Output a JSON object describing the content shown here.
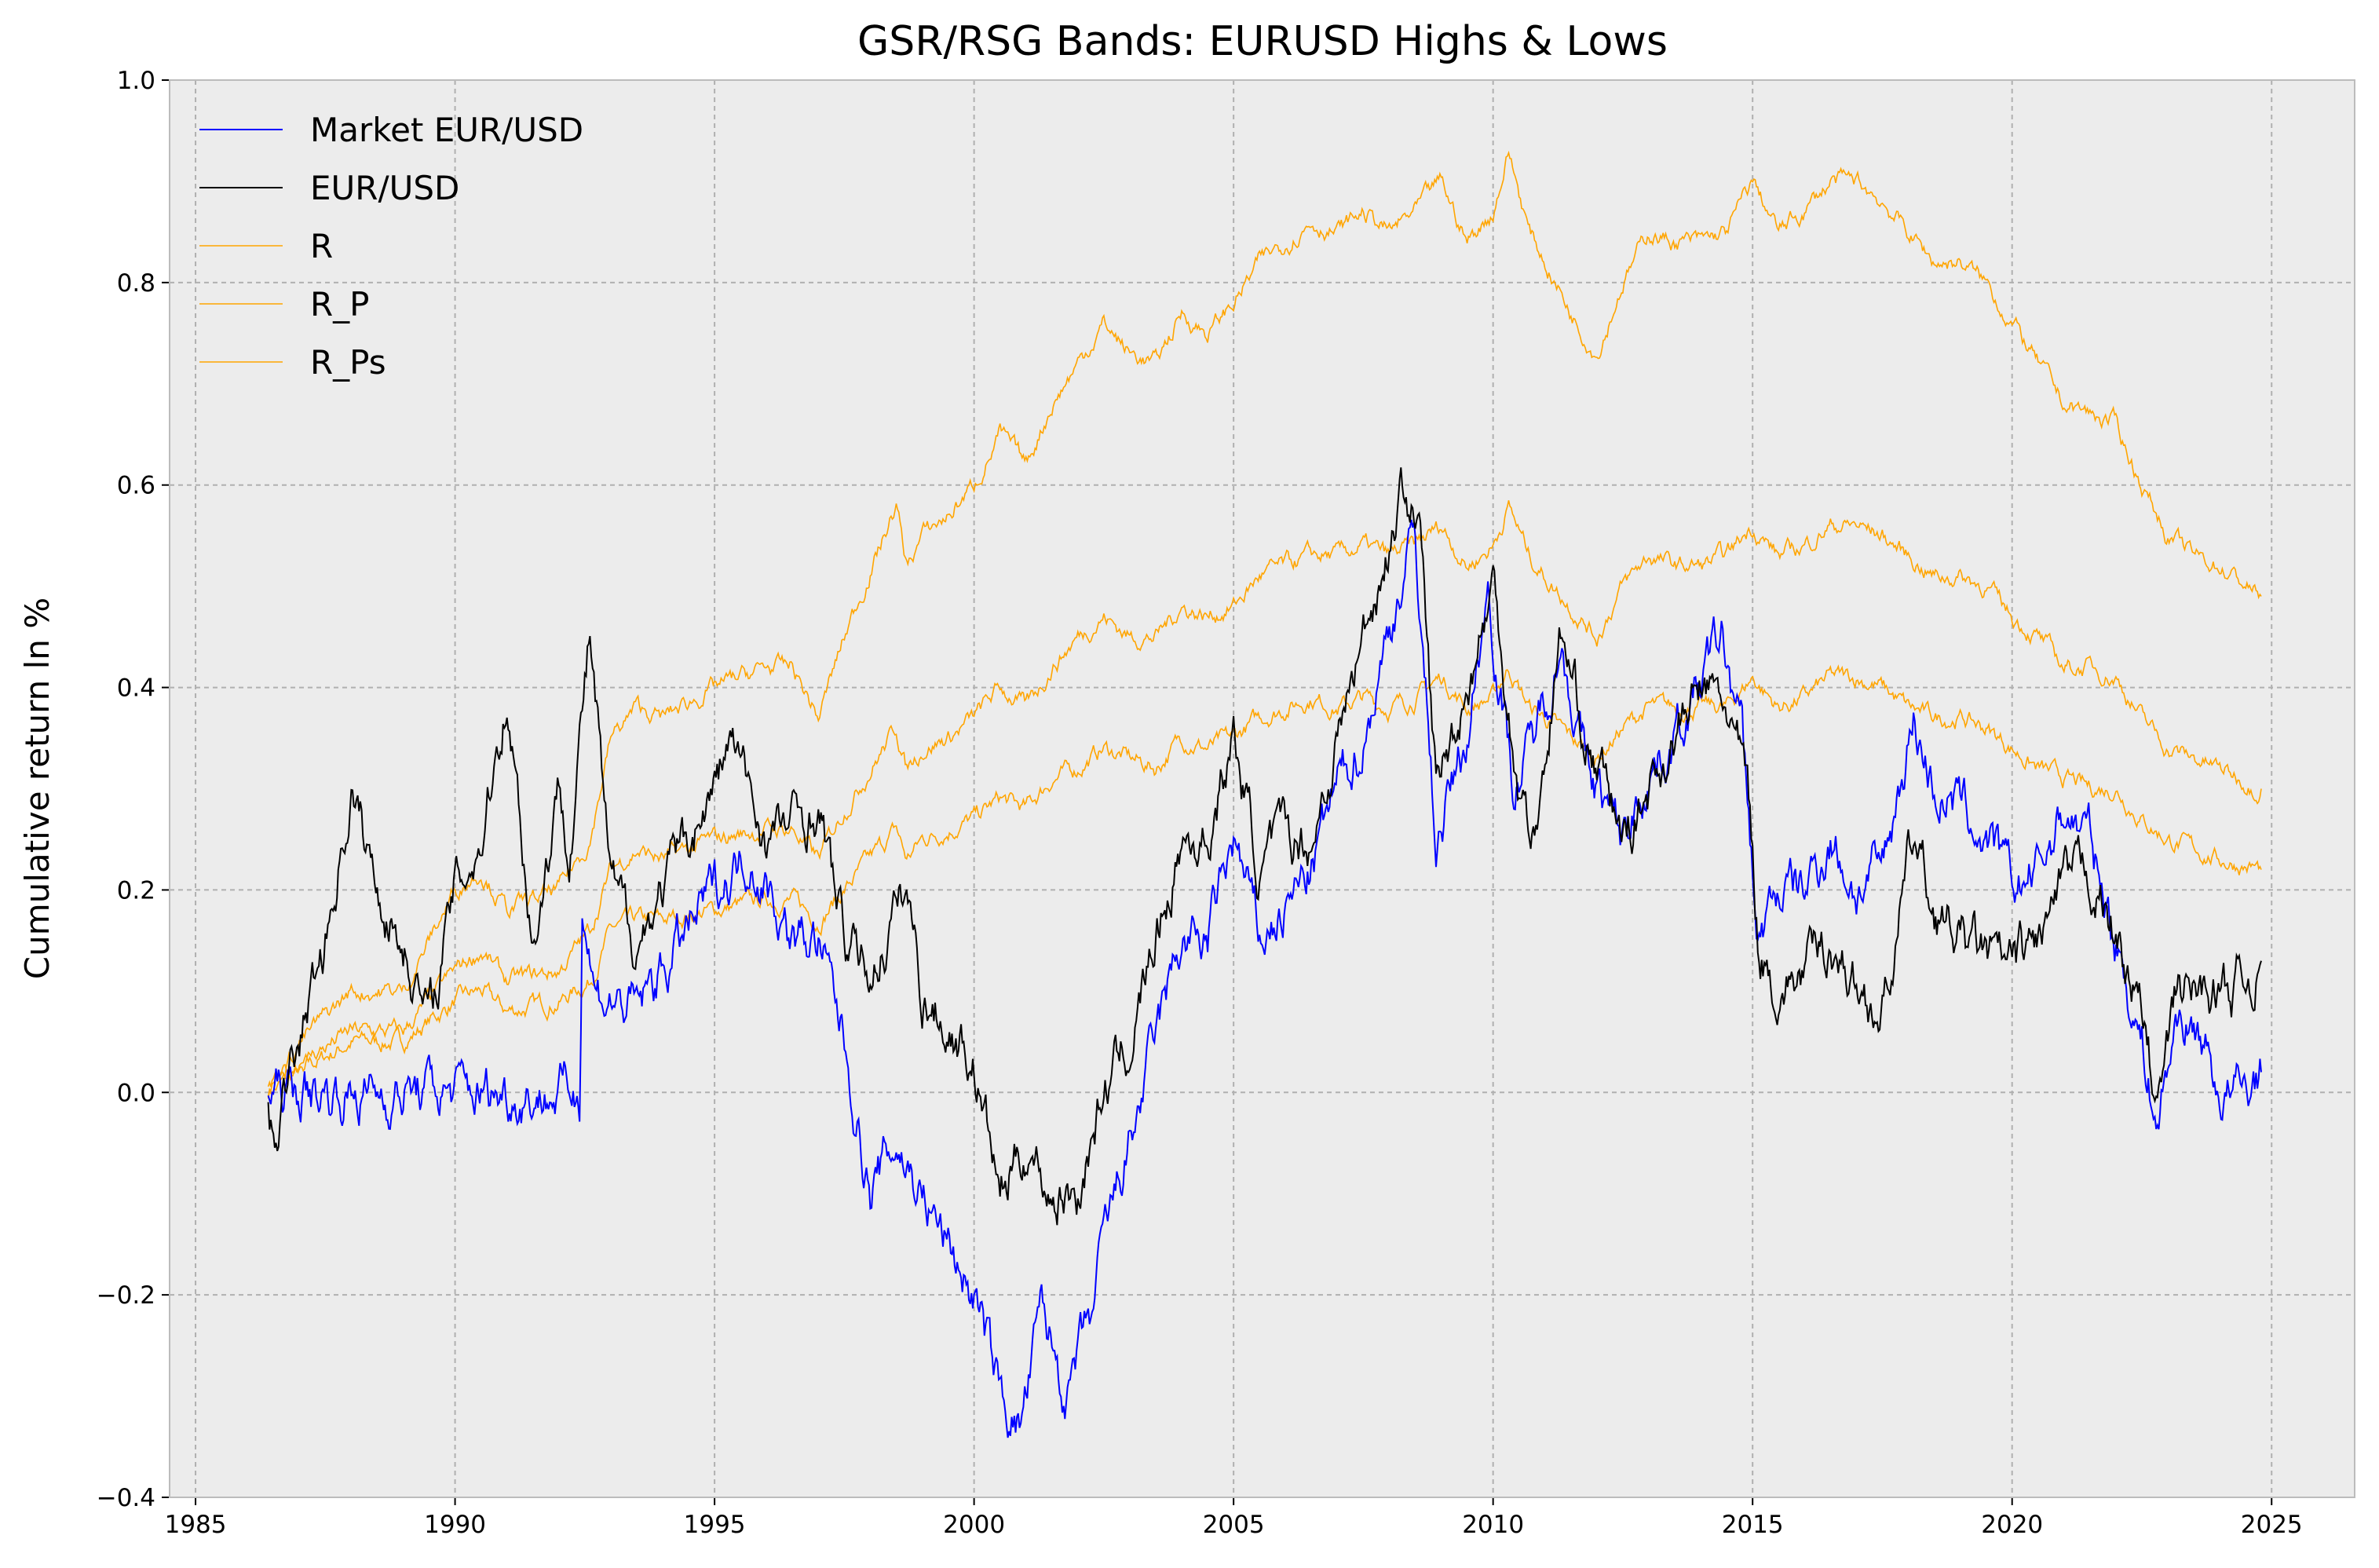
{
  "chart_data": {
    "type": "line",
    "title": "GSR/RSG Bands: EURUSD Highs & Lows",
    "xlabel": "",
    "ylabel": "Cumulative return ln %",
    "xlim": [
      1984.5,
      2026.6
    ],
    "ylim": [
      -0.4,
      1.0
    ],
    "xticks": [
      1985,
      1990,
      1995,
      2000,
      2005,
      2010,
      2015,
      2020,
      2025
    ],
    "xtick_labels": [
      "1985",
      "1990",
      "1995",
      "2000",
      "2005",
      "2010",
      "2015",
      "2020",
      "2025"
    ],
    "yticks": [
      -0.4,
      -0.2,
      0.0,
      0.2,
      0.4,
      0.6,
      0.8,
      1.0
    ],
    "ytick_labels": [
      "−0.4",
      "−0.2",
      "0.0",
      "0.2",
      "0.4",
      "0.6",
      "0.8",
      "1.0"
    ],
    "grid": true,
    "legend_position": "top-left",
    "series": [
      {
        "name": "Market EUR/USD",
        "color": "#0000ff",
        "x": [
          1986.4,
          1992.4,
          1992.45,
          1992.7,
          1993.5,
          1994,
          1995,
          1995.7,
          1996.5,
          1997,
          1997.5,
          1998,
          1998.5,
          1999,
          1999.5,
          2000,
          2000.5,
          2000.9,
          2001.3,
          2001.8,
          2002.3,
          2002.5,
          2003,
          2003.5,
          2004,
          2004.5,
          2005,
          2005.5,
          2006,
          2006.5,
          2007,
          2007.5,
          2008.2,
          2008.5,
          2008.9,
          2009.5,
          2009.9,
          2010.4,
          2010.8,
          2011.3,
          2011.8,
          2012.5,
          2013,
          2013.5,
          2014.4,
          2014.8,
          2015.1,
          2015.5,
          2016,
          2016.5,
          2017,
          2017.5,
          2018.1,
          2018.5,
          2019,
          2019.5,
          2020,
          2020.5,
          2021,
          2021.5,
          2022,
          2022.5,
          2022.8,
          2023.2,
          2023.7,
          2024,
          2024.5,
          2024.8
        ],
        "y": [
          0,
          0,
          0.2,
          0.1,
          0.08,
          0.12,
          0.2,
          0.24,
          0.15,
          0.15,
          0.05,
          -0.1,
          -0.05,
          -0.1,
          -0.15,
          -0.2,
          -0.3,
          -0.33,
          -0.22,
          -0.3,
          -0.22,
          -0.15,
          -0.05,
          0.05,
          0.15,
          0.15,
          0.25,
          0.15,
          0.18,
          0.22,
          0.3,
          0.35,
          0.5,
          0.55,
          0.25,
          0.35,
          0.5,
          0.3,
          0.35,
          0.45,
          0.32,
          0.25,
          0.32,
          0.35,
          0.45,
          0.35,
          0.15,
          0.2,
          0.2,
          0.25,
          0.2,
          0.22,
          0.37,
          0.3,
          0.28,
          0.25,
          0.2,
          0.22,
          0.28,
          0.25,
          0.15,
          0.05,
          -0.03,
          0.08,
          0.05,
          0,
          0,
          0.02
        ]
      },
      {
        "name": "EUR/USD",
        "color": "#000000",
        "x": [
          1986.4,
          1986.5,
          1987,
          1987.5,
          1988,
          1988.5,
          1989,
          1989.5,
          1990,
          1990.5,
          1991,
          1991.5,
          1992,
          1992.2,
          1992.6,
          1993,
          1993.5,
          1994,
          1995,
          1995.3,
          1996,
          1997,
          1997.5,
          1998,
          1998.7,
          1999,
          2000,
          2000.5,
          2001,
          2001.5,
          2002,
          2002.5,
          2003,
          2003.5,
          2004,
          2004.5,
          2005,
          2005.5,
          2006,
          2006.5,
          2007,
          2007.5,
          2008.3,
          2008.6,
          2008.9,
          2009.5,
          2010,
          2010.5,
          2010.8,
          2011.3,
          2011.8,
          2012.5,
          2013,
          2013.5,
          2014,
          2014.5,
          2014.9,
          2015.1,
          2015.5,
          2016,
          2016.5,
          2017,
          2017.5,
          2018.1,
          2018.5,
          2019,
          2020,
          2020.5,
          2021,
          2021.5,
          2022,
          2022.5,
          2022.8,
          2023.2,
          2023.7,
          2024.3,
          2024.8
        ],
        "y": [
          0,
          -0.05,
          0.05,
          0.15,
          0.3,
          0.2,
          0.15,
          0.07,
          0.2,
          0.25,
          0.4,
          0.15,
          0.3,
          0.25,
          0.45,
          0.2,
          0.15,
          0.2,
          0.3,
          0.35,
          0.25,
          0.28,
          0.15,
          0.12,
          0.2,
          0.1,
          0.03,
          -0.1,
          -0.05,
          -0.1,
          -0.1,
          0,
          0.05,
          0.15,
          0.25,
          0.25,
          0.35,
          0.22,
          0.25,
          0.25,
          0.35,
          0.45,
          0.6,
          0.55,
          0.3,
          0.4,
          0.5,
          0.3,
          0.25,
          0.45,
          0.35,
          0.25,
          0.3,
          0.35,
          0.4,
          0.38,
          0.3,
          0.15,
          0.1,
          0.12,
          0.15,
          0.1,
          0.08,
          0.25,
          0.18,
          0.15,
          0.12,
          0.15,
          0.2,
          0.22,
          0.15,
          0.08,
          -0.02,
          0.1,
          0.1,
          0.1,
          0.13
        ]
      },
      {
        "name": "R",
        "color": "#ffa500",
        "band": "low",
        "y": [
          0,
          0.02,
          0.05,
          0.05,
          0.09,
          0.1,
          0.08,
          0.09,
          0.11,
          0.16,
          0.17,
          0.17,
          0.18,
          0.19,
          0.19,
          0.17,
          0.2,
          0.26,
          0.23,
          0.25,
          0.26,
          0.27,
          0.29,
          0.28,
          0.31,
          0.32,
          0.34,
          0.33,
          0.32,
          0.35,
          0.34,
          0.35,
          0.37,
          0.38,
          0.39,
          0.38,
          0.39,
          0.38,
          0.39,
          0.41,
          0.38,
          0.39,
          0.42,
          0.38,
          0.37,
          0.35,
          0.33,
          0.36,
          0.38,
          0.38,
          0.38,
          0.38,
          0.41,
          0.38,
          0.39,
          0.41,
          0.41,
          0.4,
          0.38,
          0.37,
          0.37,
          0.36,
          0.34,
          0.32,
          0.31,
          0.3,
          0.3,
          0.27,
          0.25,
          0.24,
          0.23,
          0.22
        ]
      },
      {
        "name": "R_P",
        "color": "#ffa500",
        "band": "mid",
        "y": [
          0,
          0.03,
          0.06,
          0.06,
          0.12,
          0.14,
          0.11,
          0.12,
          0.16,
          0.22,
          0.24,
          0.23,
          0.25,
          0.26,
          0.26,
          0.23,
          0.28,
          0.36,
          0.32,
          0.34,
          0.35,
          0.37,
          0.4,
          0.38,
          0.42,
          0.45,
          0.47,
          0.45,
          0.45,
          0.48,
          0.47,
          0.48,
          0.51,
          0.52,
          0.53,
          0.53,
          0.54,
          0.53,
          0.54,
          0.56,
          0.52,
          0.54,
          0.58,
          0.53,
          0.51,
          0.48,
          0.45,
          0.5,
          0.53,
          0.52,
          0.52,
          0.53,
          0.56,
          0.53,
          0.54,
          0.56,
          0.56,
          0.55,
          0.53,
          0.51,
          0.51,
          0.5,
          0.47,
          0.45,
          0.42,
          0.42,
          0.41,
          0.37,
          0.34,
          0.33,
          0.32,
          0.3
        ]
      },
      {
        "name": "R_Ps",
        "color": "#ffa500",
        "band": "high",
        "y": [
          0,
          0.05,
          0.1,
          0.1,
          0.2,
          0.22,
          0.18,
          0.2,
          0.25,
          0.35,
          0.38,
          0.37,
          0.4,
          0.42,
          0.42,
          0.37,
          0.45,
          0.58,
          0.52,
          0.55,
          0.57,
          0.6,
          0.65,
          0.62,
          0.68,
          0.72,
          0.76,
          0.73,
          0.72,
          0.77,
          0.75,
          0.78,
          0.82,
          0.84,
          0.86,
          0.85,
          0.87,
          0.85,
          0.87,
          0.9,
          0.84,
          0.87,
          0.93,
          0.85,
          0.82,
          0.77,
          0.73,
          0.8,
          0.85,
          0.84,
          0.84,
          0.85,
          0.9,
          0.85,
          0.87,
          0.9,
          0.9,
          0.88,
          0.85,
          0.82,
          0.82,
          0.8,
          0.76,
          0.72,
          0.68,
          0.67,
          0.66,
          0.6,
          0.55,
          0.53,
          0.52,
          0.49
        ]
      }
    ],
    "band_x": [
      1986.4,
      1987,
      1988,
      1989,
      1990,
      1990.5,
      1991,
      1992,
      1992.6,
      1993,
      1993.5,
      1994,
      1995,
      1996,
      1996.5,
      1997,
      1997.5,
      1998.5,
      1998.7,
      1999,
      1999.5,
      2000,
      2000.5,
      2001,
      2001.5,
      2002,
      2002.5,
      2003,
      2003.5,
      2004,
      2004.5,
      2005,
      2005.5,
      2006,
      2006.5,
      2007,
      2007.5,
      2008,
      2008.5,
      2009,
      2009.5,
      2010,
      2010.3,
      2010.7,
      2011,
      2011.5,
      2012,
      2012.5,
      2013,
      2013.5,
      2014,
      2014.5,
      2015,
      2015.5,
      2016,
      2016.5,
      2017,
      2017.5,
      2018,
      2018.5,
      2019,
      2019.5,
      2020,
      2020.5,
      2021,
      2021.5,
      2022,
      2022.5,
      2023,
      2023.5,
      2024,
      2024.8
    ]
  }
}
